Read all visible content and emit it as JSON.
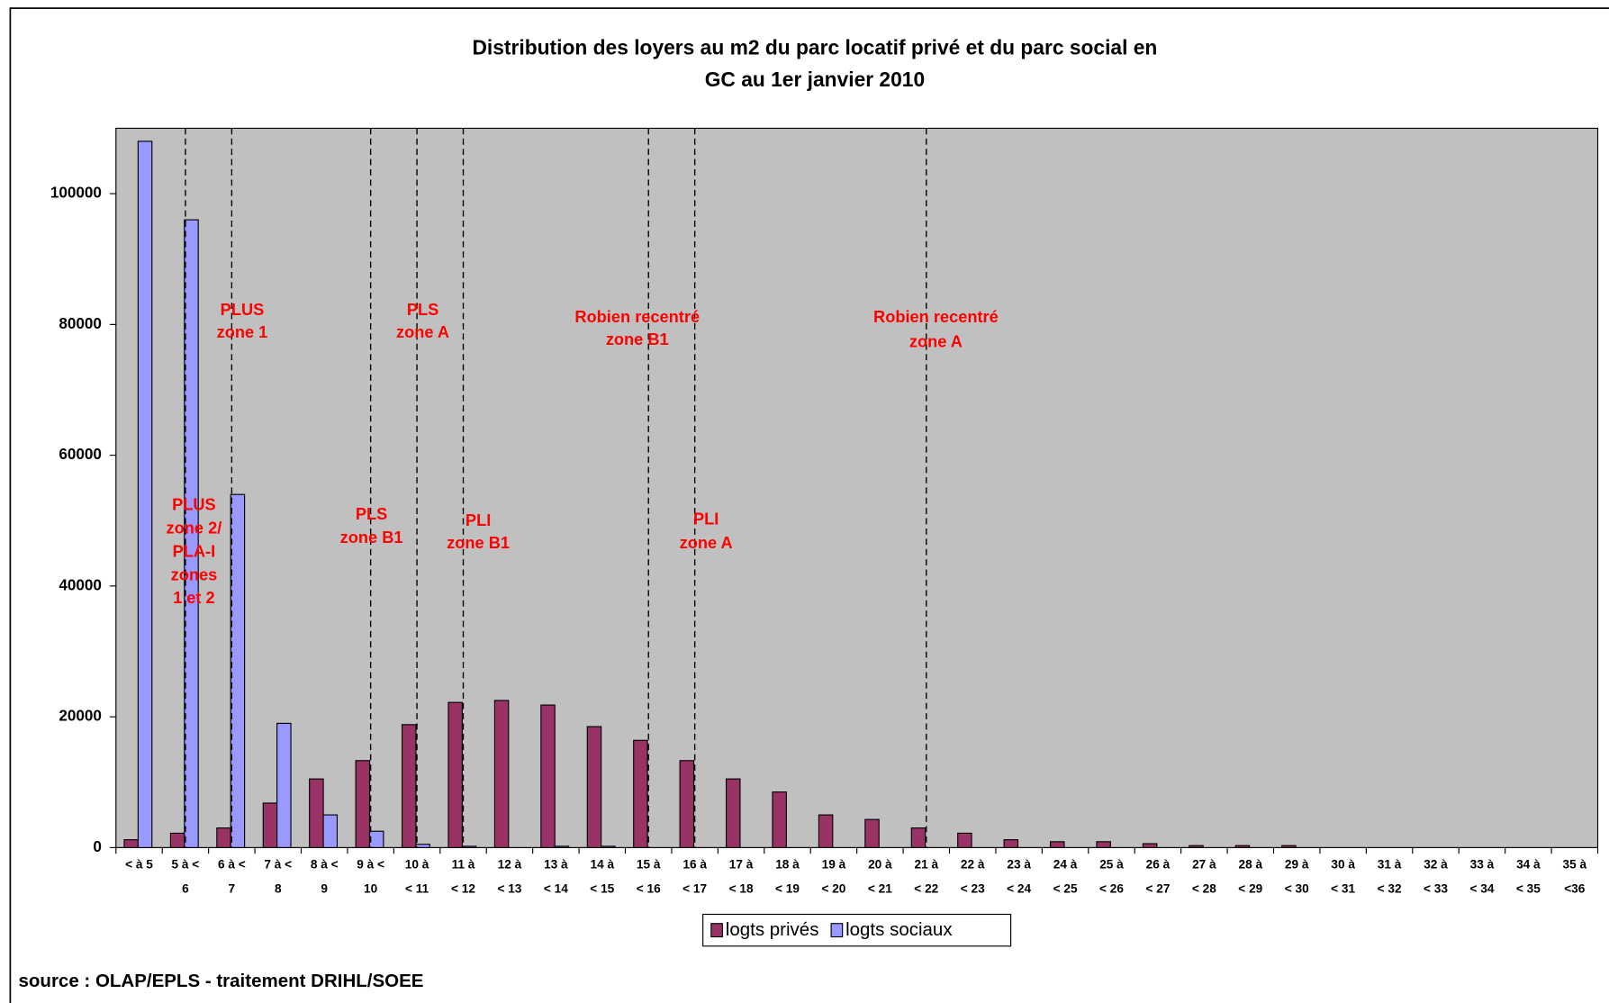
{
  "chart_data": {
    "type": "bar",
    "title": [
      "Distribution des loyers au m2 du parc locatif privé et du parc social en",
      "GC au 1er janvier 2010"
    ],
    "categories": [
      [
        "< à 5"
      ],
      [
        "5 à <",
        "6"
      ],
      [
        "6 à <",
        "7"
      ],
      [
        "7 à <",
        "8"
      ],
      [
        "8 à <",
        "9"
      ],
      [
        "9 à <",
        "10"
      ],
      [
        "10 à",
        "< 11"
      ],
      [
        "11 à",
        "< 12"
      ],
      [
        "12 à",
        "< 13"
      ],
      [
        "13 à",
        "< 14"
      ],
      [
        "14 à",
        "< 15"
      ],
      [
        "15 à",
        "< 16"
      ],
      [
        "16 à",
        "< 17"
      ],
      [
        "17 à",
        "< 18"
      ],
      [
        "18 à",
        "< 19"
      ],
      [
        "19 à",
        "< 20"
      ],
      [
        "20 à",
        "< 21"
      ],
      [
        "21 à",
        "< 22"
      ],
      [
        "22 à",
        "< 23"
      ],
      [
        "23 à",
        "< 24"
      ],
      [
        "24 à",
        "< 25"
      ],
      [
        "25 à",
        "< 26"
      ],
      [
        "26 à",
        "< 27"
      ],
      [
        "27 à",
        "< 28"
      ],
      [
        "28 à",
        "< 29"
      ],
      [
        "29 à",
        "< 30"
      ],
      [
        "30 à",
        "< 31"
      ],
      [
        "31 à",
        "< 32"
      ],
      [
        "32 à",
        "< 33"
      ],
      [
        "33 à",
        "< 34"
      ],
      [
        "34 à",
        "< 35"
      ],
      [
        "35 à",
        "<36"
      ]
    ],
    "series": [
      {
        "name": "logts privés",
        "color": "#993366",
        "values": [
          1200,
          2200,
          3000,
          6800,
          10500,
          13300,
          18800,
          22200,
          22500,
          21800,
          18500,
          16400,
          13300,
          10500,
          8500,
          5000,
          4300,
          3000,
          2200,
          1200,
          900,
          900,
          600,
          300,
          300,
          300,
          0,
          0,
          0,
          0,
          0,
          0
        ]
      },
      {
        "name": "logts sociaux",
        "color": "#9999ff",
        "values": [
          108000,
          96000,
          54000,
          19000,
          5000,
          2500,
          500,
          200,
          0,
          200,
          200,
          0,
          0,
          0,
          0,
          0,
          0,
          0,
          0,
          0,
          0,
          0,
          0,
          0,
          0,
          0,
          0,
          0,
          0,
          0,
          0,
          0
        ]
      }
    ],
    "ylim": [
      0,
      110000
    ],
    "yticks": [
      0,
      20000,
      40000,
      60000,
      80000,
      100000
    ],
    "annotations": [
      [
        "PLUS",
        "zone 1"
      ],
      [
        "PLUS",
        "zone 2/",
        "PLA-I",
        "zones",
        "1 et 2"
      ],
      [
        "PLS",
        "zone A"
      ],
      [
        "PLS",
        "zone B1"
      ],
      [
        "PLI",
        "zone B1"
      ],
      [
        "Robien recentré",
        "zone B1"
      ],
      [
        "PLI",
        "zone A"
      ],
      [
        "Robien recentré",
        "zone A"
      ]
    ],
    "source": "source : OLAP/EPLS - traitement DRIHL/SOEE"
  }
}
